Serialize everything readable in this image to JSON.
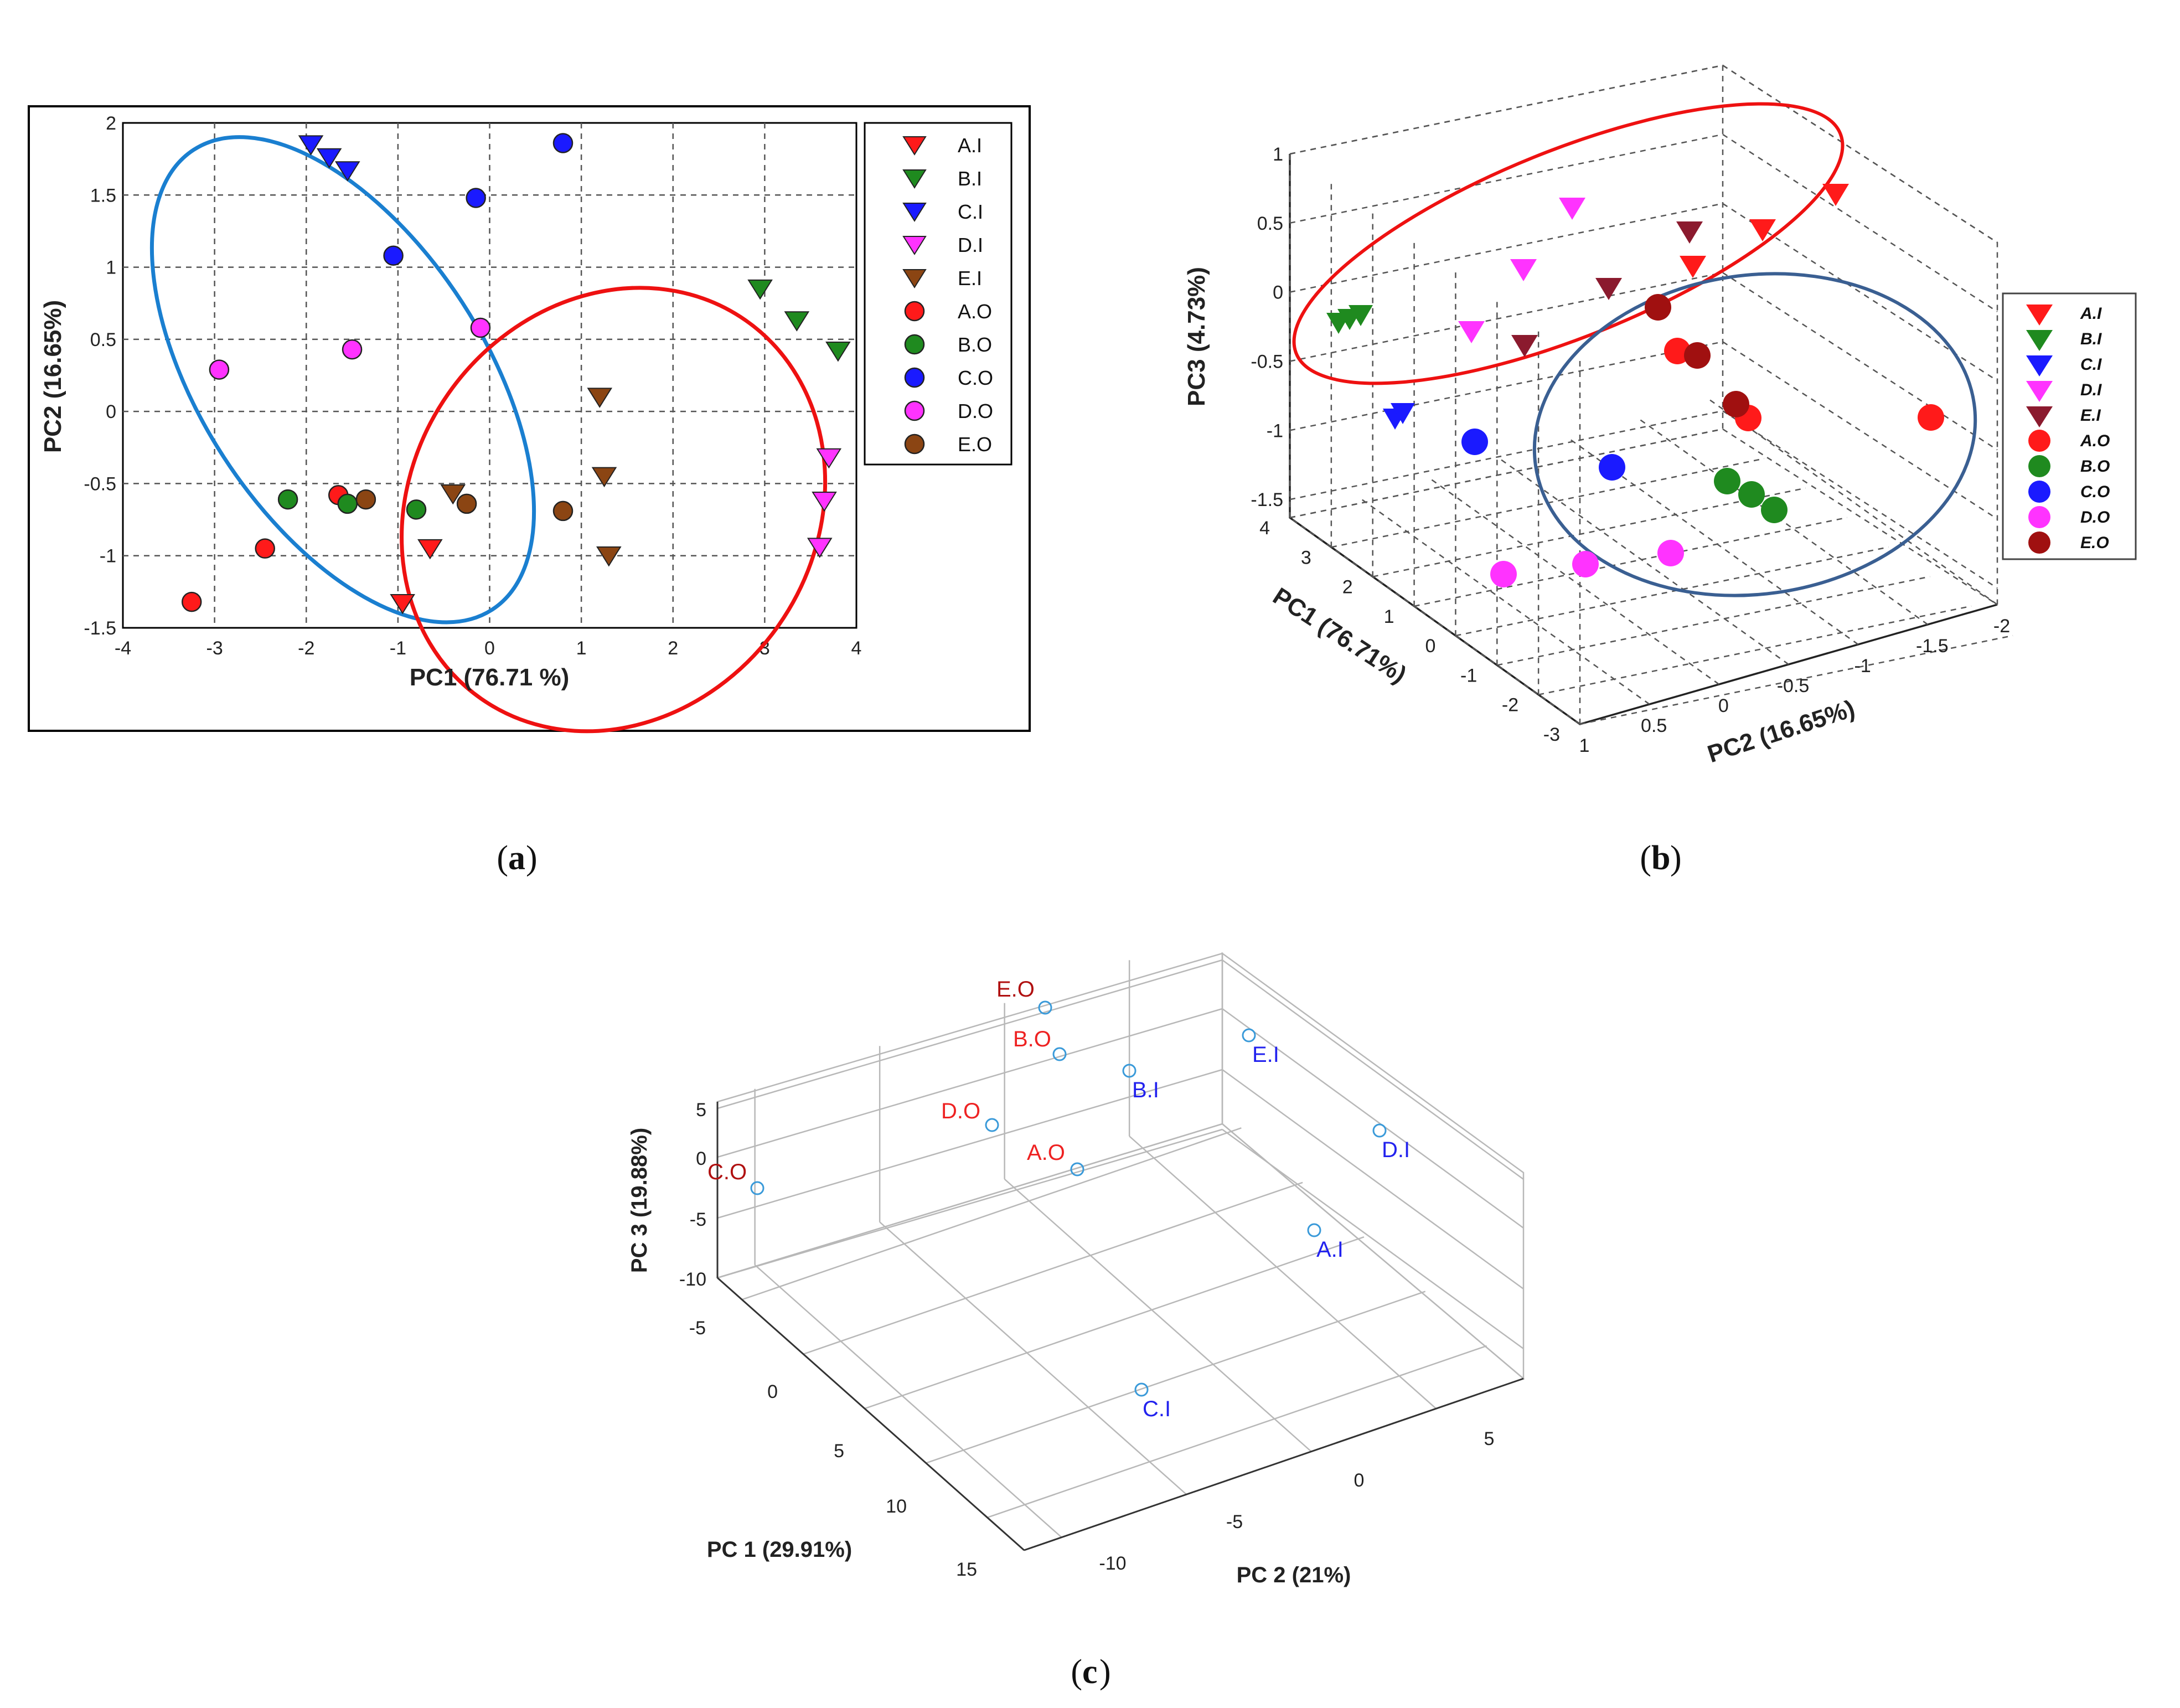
{
  "captions": {
    "a": "a",
    "b": "b",
    "c": "c"
  },
  "chart_data": [
    {
      "type": "scatter",
      "panel": "a",
      "xlabel": "PC1 (76.71 %)",
      "ylabel": "PC2 (16.65%)",
      "xlim": [
        -4,
        4
      ],
      "ylim": [
        -1.5,
        2
      ],
      "xticks": [
        "-4",
        "-3",
        "-2",
        "-1",
        "0",
        "1",
        "2",
        "3",
        "4"
      ],
      "yticks": [
        "2",
        "1.5",
        "1",
        "0.5",
        "0",
        "-0.5",
        "-1",
        "-1.5"
      ],
      "grid": true,
      "legend_position": "right",
      "series": [
        {
          "name": "A.I",
          "marker": "triangle-down",
          "color": "#ff1a1a",
          "points": [
            [
              -0.95,
              -1.33
            ],
            [
              -0.65,
              -0.95
            ]
          ]
        },
        {
          "name": "B.I",
          "marker": "triangle-down",
          "color": "#1f8a1f",
          "points": [
            [
              2.95,
              0.85
            ],
            [
              3.35,
              0.63
            ],
            [
              3.8,
              0.42
            ]
          ]
        },
        {
          "name": "C.I",
          "marker": "triangle-down",
          "color": "#1a1aff",
          "points": [
            [
              -1.95,
              1.85
            ],
            [
              -1.75,
              1.76
            ],
            [
              -1.55,
              1.67
            ]
          ]
        },
        {
          "name": "D.I",
          "marker": "triangle-down",
          "color": "#ff33ff",
          "points": [
            [
              3.7,
              -0.32
            ],
            [
              3.65,
              -0.62
            ],
            [
              3.6,
              -0.94
            ]
          ]
        },
        {
          "name": "E.I",
          "marker": "triangle-down",
          "color": "#8b4513",
          "points": [
            [
              1.2,
              0.1
            ],
            [
              1.25,
              -0.45
            ],
            [
              1.3,
              -1.0
            ],
            [
              -0.4,
              -0.57
            ]
          ]
        },
        {
          "name": "A.O",
          "marker": "circle",
          "color": "#ff1a1a",
          "points": [
            [
              -3.25,
              -1.32
            ],
            [
              -2.45,
              -0.95
            ],
            [
              -1.65,
              -0.58
            ]
          ]
        },
        {
          "name": "B.O",
          "marker": "circle",
          "color": "#1f8a1f",
          "points": [
            [
              -2.2,
              -0.61
            ],
            [
              -1.55,
              -0.64
            ],
            [
              -0.8,
              -0.68
            ]
          ]
        },
        {
          "name": "C.O",
          "marker": "circle",
          "color": "#1a1aff",
          "points": [
            [
              -1.05,
              1.08
            ],
            [
              -0.15,
              1.48
            ],
            [
              0.8,
              1.86
            ]
          ]
        },
        {
          "name": "D.O",
          "marker": "circle",
          "color": "#ff33ff",
          "points": [
            [
              -2.95,
              0.29
            ],
            [
              -1.5,
              0.43
            ],
            [
              -0.1,
              0.58
            ]
          ]
        },
        {
          "name": "E.O",
          "marker": "circle",
          "color": "#8b4513",
          "points": [
            [
              -1.35,
              -0.61
            ],
            [
              -0.25,
              -0.64
            ],
            [
              0.8,
              -0.69
            ]
          ]
        }
      ],
      "ellipses": [
        {
          "color": "#1a7fd0",
          "cx": -1.6,
          "cy": 0.22,
          "rx": 1.55,
          "ry": 1.9,
          "angle_deg": 33
        },
        {
          "color": "#ee1111",
          "cx": 1.35,
          "cy": -0.68,
          "rx": 2.2,
          "ry": 1.6,
          "angle_deg": -35
        }
      ]
    },
    {
      "type": "scatter3d",
      "panel": "b",
      "xlabel": "PC1 (76.71%)",
      "ylabel": "PC2 (16.65%)",
      "zlabel": "PC3 (4.73%)",
      "pc3_ticks": [
        "1",
        "0.5",
        "0",
        "-0.5",
        "-1",
        "-1.5"
      ],
      "pc1_ticks": [
        "4",
        "3",
        "2",
        "1",
        "0",
        "-1",
        "-2",
        "-3"
      ],
      "pc2_ticks": [
        "1",
        "0.5",
        "0",
        "-0.5",
        "-1",
        "-1.5",
        "-2"
      ],
      "legend_position": "right",
      "legend": [
        {
          "name": "A.I",
          "marker": "triangle-down",
          "color": "#ff1a1a"
        },
        {
          "name": "B.I",
          "marker": "triangle-down",
          "color": "#1f8a1f"
        },
        {
          "name": "C.I",
          "marker": "triangle-down",
          "color": "#1a1aff"
        },
        {
          "name": "D.I",
          "marker": "triangle-down",
          "color": "#ff33ff"
        },
        {
          "name": "E.I",
          "marker": "triangle-down",
          "color": "#8b1a2e"
        },
        {
          "name": "A.O",
          "marker": "circle",
          "color": "#ff1a1a"
        },
        {
          "name": "B.O",
          "marker": "circle",
          "color": "#1f8a1f"
        },
        {
          "name": "C.O",
          "marker": "circle",
          "color": "#1a1aff"
        },
        {
          "name": "D.O",
          "marker": "circle",
          "color": "#ff33ff"
        },
        {
          "name": "E.O",
          "marker": "circle",
          "color": "#a01010"
        }
      ]
    },
    {
      "type": "scatter3d",
      "panel": "c",
      "xlabel": "PC 1 (29.91%)",
      "ylabel": "PC 2 (21%)",
      "zlabel": "PC 3 (19.88%)",
      "pc3_ticks": [
        "5",
        "0",
        "-5",
        "-10"
      ],
      "pc1_ticks": [
        "-5",
        "0",
        "5",
        "10",
        "15"
      ],
      "pc2_ticks": [
        "-10",
        "-5",
        "0",
        "5"
      ],
      "points": [
        {
          "label": "E.O",
          "group": "O",
          "color": "#ee2222"
        },
        {
          "label": "B.O",
          "group": "O",
          "color": "#ee2222"
        },
        {
          "label": "D.O",
          "group": "O",
          "color": "#ee2222"
        },
        {
          "label": "C.O",
          "group": "O",
          "color": "#ee2222"
        },
        {
          "label": "A.O",
          "group": "O",
          "color": "#ee2222"
        },
        {
          "label": "B.I",
          "group": "I",
          "color": "#2222ee"
        },
        {
          "label": "E.I",
          "group": "I",
          "color": "#2222ee"
        },
        {
          "label": "D.I",
          "group": "I",
          "color": "#2222ee"
        },
        {
          "label": "A.I",
          "group": "I",
          "color": "#2222ee"
        },
        {
          "label": "C.I",
          "group": "I",
          "color": "#2222ee"
        }
      ]
    }
  ]
}
